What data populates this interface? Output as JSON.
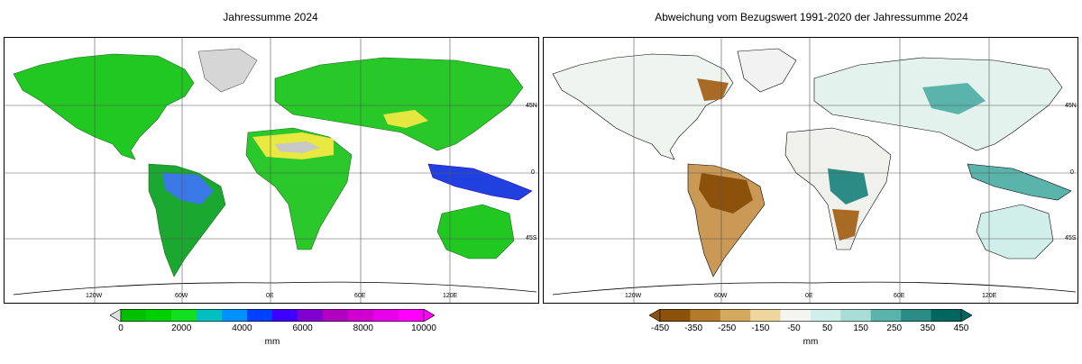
{
  "left_panel": {
    "title": "Jahressumme 2024",
    "lon_labels": [
      "120W",
      "60W",
      "0E",
      "60E",
      "120E"
    ],
    "lat_labels": [
      "45N",
      "0",
      "45S"
    ],
    "colorbar": {
      "ticks": [
        "0",
        "2000",
        "4000",
        "6000",
        "8000",
        "10000"
      ],
      "unit": "mm",
      "colors": [
        "#00c000",
        "#00d000",
        "#10e020",
        "#00c0c0",
        "#0090ff",
        "#0040ff",
        "#4000ff",
        "#8000d0",
        "#b000c0",
        "#d000d0",
        "#e800e8",
        "#ff00ff"
      ]
    }
  },
  "right_panel": {
    "title": "Abweichung vom Bezugswert 1991-2020 der Jahressumme 2024",
    "lon_labels": [
      "120W",
      "60W",
      "0E",
      "60E",
      "120E"
    ],
    "lat_labels": [
      "45N",
      "0",
      "45S"
    ],
    "colorbar": {
      "ticks": [
        "-450",
        "-350",
        "-250",
        "-150",
        "-50",
        "50",
        "150",
        "250",
        "350",
        "450"
      ],
      "unit": "mm",
      "colors": [
        "#8c510a",
        "#b57a2a",
        "#d4aa5f",
        "#eed79f",
        "#f5f5f0",
        "#d0eeea",
        "#a8ddd5",
        "#5ab4ac",
        "#2a8c84",
        "#01665e"
      ]
    }
  }
}
